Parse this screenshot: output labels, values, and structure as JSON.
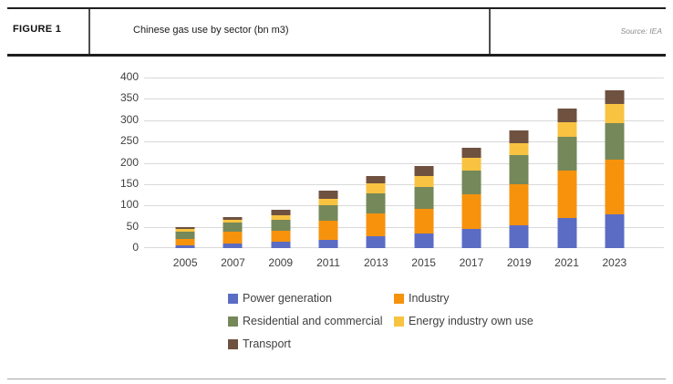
{
  "header": {
    "figure_label": "FIGURE 1",
    "title": "Chinese gas use by sector (bn m3)",
    "source": "Source: IEA"
  },
  "chart_data": {
    "type": "bar",
    "stacked": true,
    "title": "Chinese gas use by sector (bn m3)",
    "xlabel": "",
    "ylabel": "",
    "ylim": [
      0,
      400
    ],
    "yticks": [
      0,
      50,
      100,
      150,
      200,
      250,
      300,
      350,
      400
    ],
    "grid": true,
    "legend_position": "bottom",
    "categories": [
      "2005",
      "2007",
      "2009",
      "2011",
      "2013",
      "2015",
      "2017",
      "2019",
      "2021",
      "2023"
    ],
    "series": [
      {
        "name": "Power generation",
        "color": "#5b6cc4",
        "values": [
          6,
          10,
          14,
          19,
          27,
          35,
          46,
          54,
          70,
          80
        ]
      },
      {
        "name": "Industry",
        "color": "#f7920d",
        "values": [
          15,
          28,
          26,
          45,
          55,
          58,
          80,
          95,
          112,
          128
        ]
      },
      {
        "name": "Residential and commercial",
        "color": "#75885a",
        "values": [
          17,
          21,
          26,
          37,
          46,
          50,
          56,
          69,
          79,
          86
        ]
      },
      {
        "name": "Energy industry own use",
        "color": "#f8c341",
        "values": [
          6,
          7,
          12,
          15,
          25,
          25,
          29,
          29,
          34,
          43
        ]
      },
      {
        "name": "Transport",
        "color": "#6f5140",
        "values": [
          5,
          6,
          12,
          18,
          17,
          25,
          25,
          28,
          33,
          34
        ]
      }
    ],
    "totals": [
      49,
      72,
      90,
      134,
      170,
      193,
      236,
      275,
      328,
      371
    ]
  },
  "colors": {
    "gridline": "#d9d9d9",
    "axis_text": "#404040",
    "header_rule": "#1f1f1f",
    "source_text": "#8c8c8c"
  }
}
